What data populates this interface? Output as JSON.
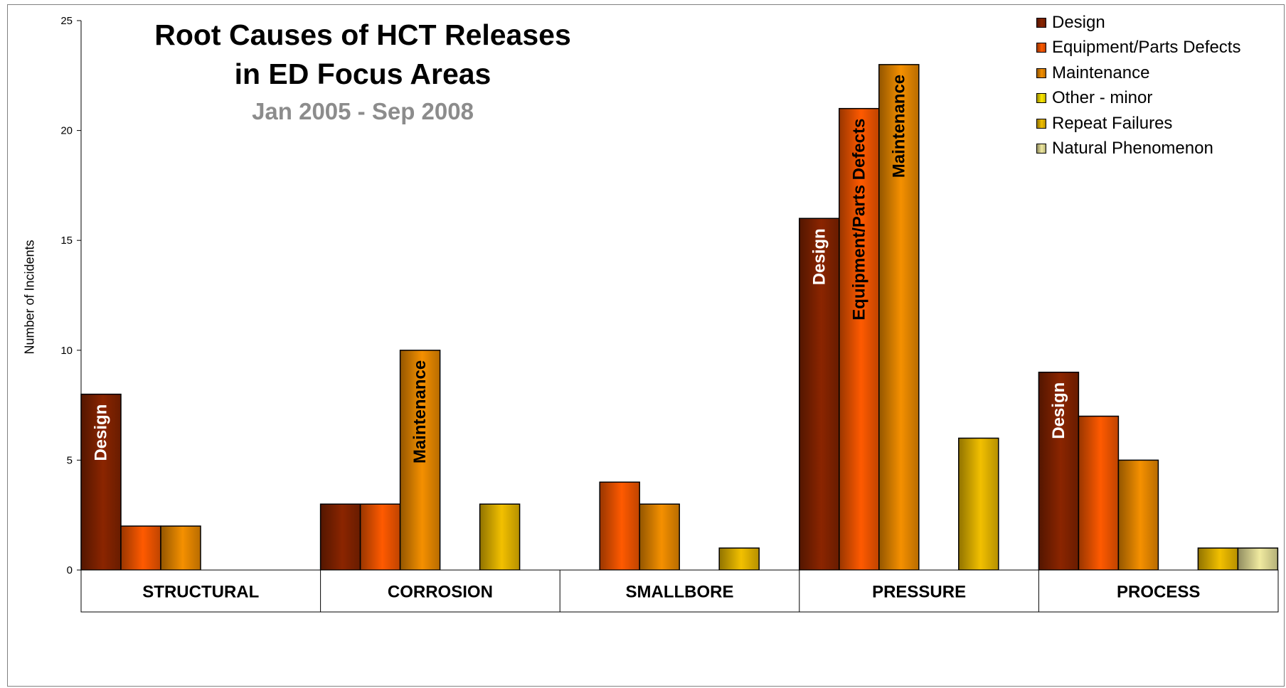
{
  "chart_data": {
    "type": "bar",
    "title": "Root Causes of HCT Releases in ED Focus Areas",
    "title_lines": [
      "Root Causes of HCT Releases",
      "in ED Focus Areas"
    ],
    "subtitle": "Jan 2005 - Sep 2008",
    "xlabel": "",
    "ylabel": "Number of Incidents",
    "ylim": [
      0,
      25
    ],
    "yticks": [
      0,
      5,
      10,
      15,
      20,
      25
    ],
    "grid": false,
    "legend_position": "top-right",
    "categories": [
      "STRUCTURAL",
      "CORROSION",
      "SMALLBORE",
      "PRESSURE",
      "PROCESS"
    ],
    "series": [
      {
        "name": "Design",
        "color": "#8b2500",
        "values": [
          8,
          3,
          0,
          16,
          9
        ]
      },
      {
        "name": "Equipment/Parts Defects",
        "color": "#ff5a00",
        "values": [
          2,
          3,
          4,
          21,
          7
        ]
      },
      {
        "name": "Maintenance",
        "color": "#f59000",
        "values": [
          2,
          10,
          3,
          23,
          5
        ]
      },
      {
        "name": "Other - minor",
        "color": "#ffea00",
        "values": [
          0,
          0,
          0,
          0,
          0
        ]
      },
      {
        "name": "Repeat Failures",
        "color": "#f2c000",
        "values": [
          0,
          3,
          1,
          6,
          1
        ]
      },
      {
        "name": "Natural Phenomenon",
        "color": "#f0eaa0",
        "values": [
          0,
          0,
          0,
          0,
          1
        ]
      }
    ],
    "bar_labels": [
      {
        "category": 0,
        "series": 0,
        "text": "Design"
      },
      {
        "category": 1,
        "series": 2,
        "text": "Maintenance"
      },
      {
        "category": 3,
        "series": 0,
        "text": "Design"
      },
      {
        "category": 3,
        "series": 1,
        "text": "Equipment/Parts Defects"
      },
      {
        "category": 3,
        "series": 2,
        "text": "Maintenance"
      },
      {
        "category": 4,
        "series": 0,
        "text": "Design"
      }
    ]
  }
}
